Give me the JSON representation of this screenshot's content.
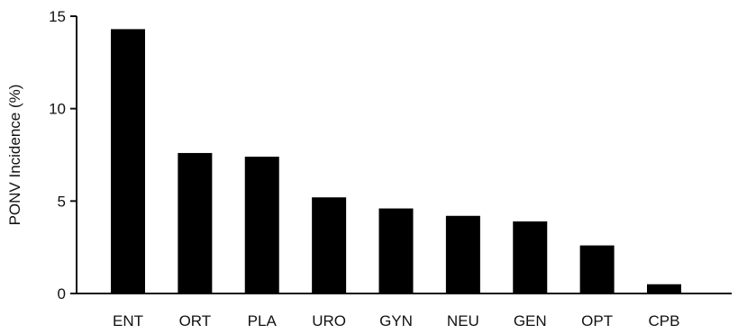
{
  "chart_data": {
    "type": "bar",
    "title": "",
    "xlabel": "",
    "ylabel": "PONV Incidence (%)",
    "categories": [
      "ENT",
      "ORT",
      "PLA",
      "URO",
      "GYN",
      "NEU",
      "GEN",
      "OPT",
      "CPB"
    ],
    "values": [
      14.3,
      7.6,
      7.4,
      5.2,
      4.6,
      4.2,
      3.9,
      2.6,
      0.5
    ],
    "ylim": [
      0,
      15
    ],
    "yticks": [
      0,
      5,
      10,
      15
    ],
    "grid": false,
    "legend": "none",
    "bar_color": "#000000"
  }
}
